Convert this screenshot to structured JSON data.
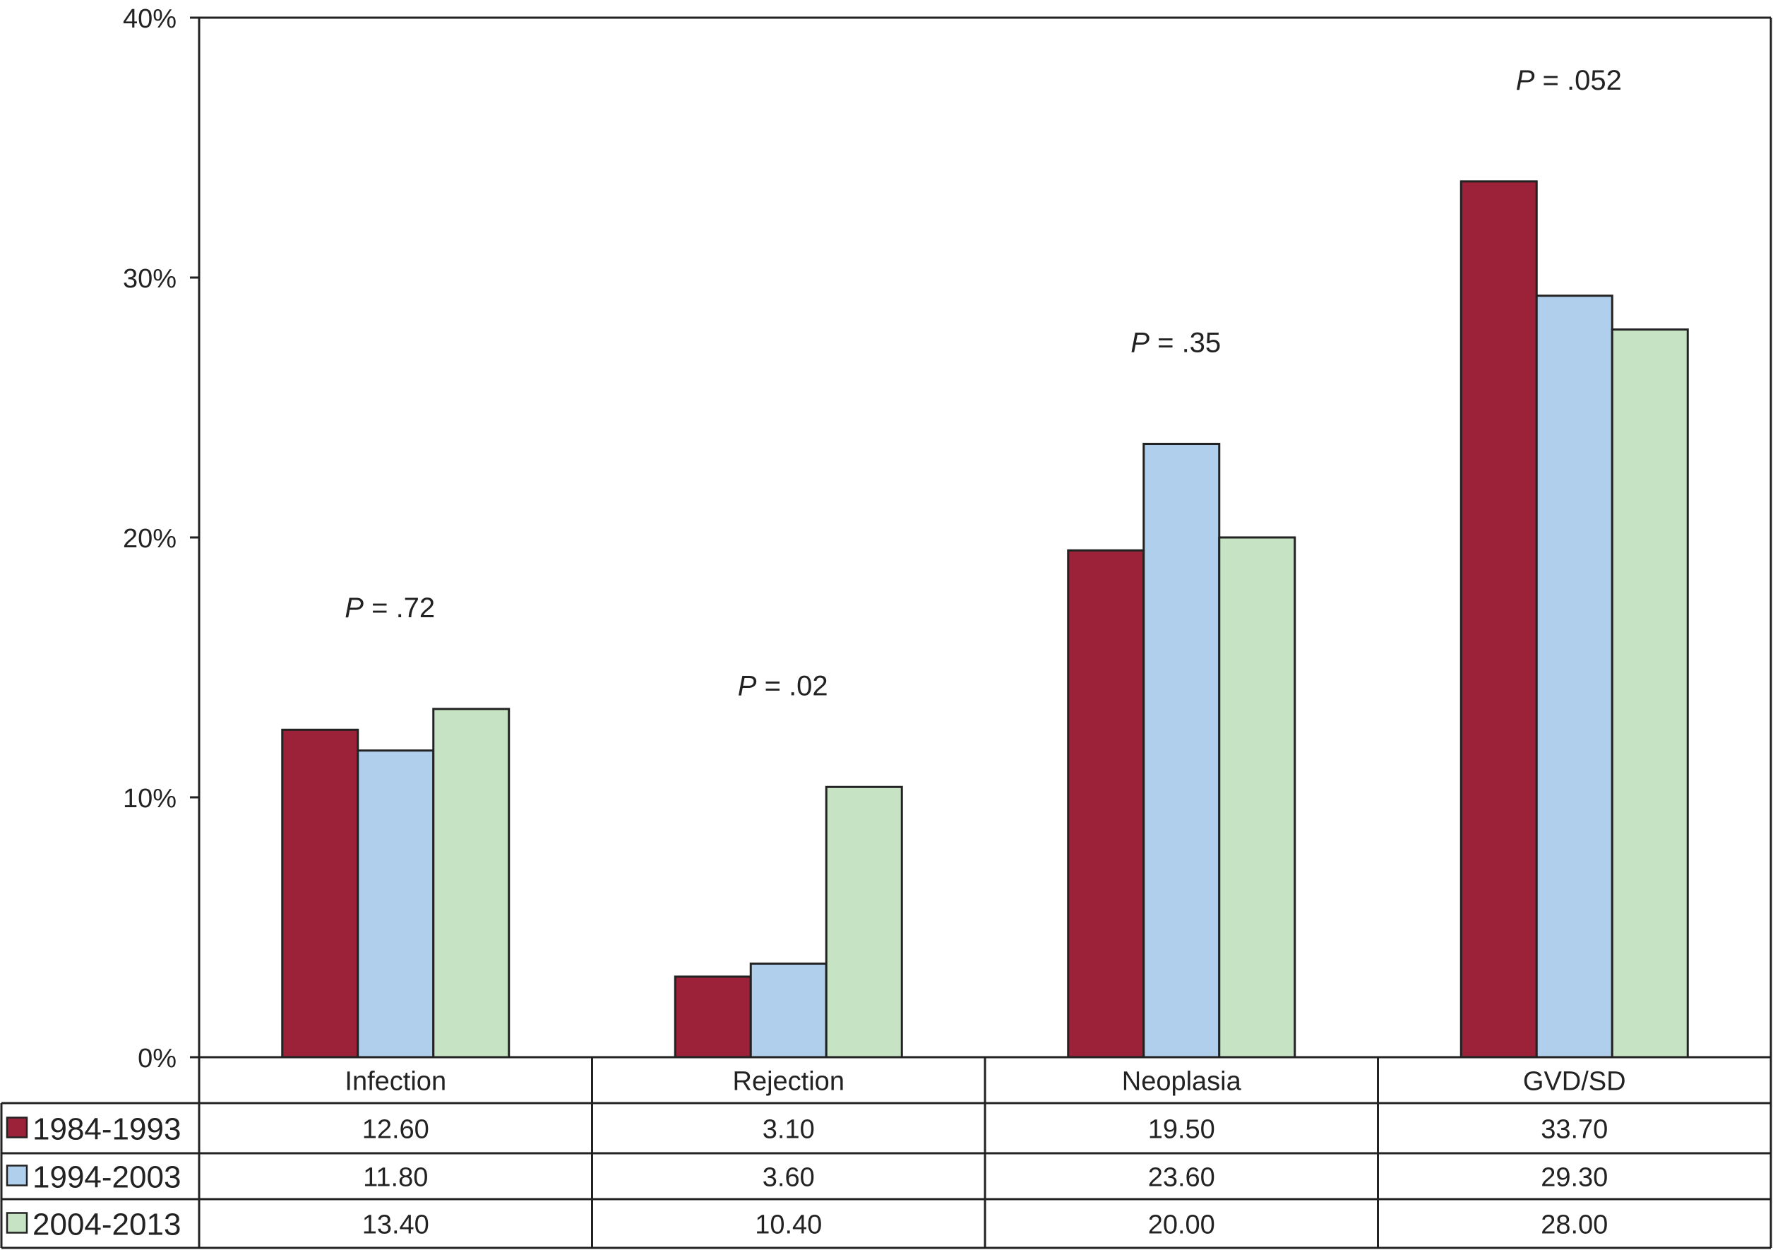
{
  "chart_data": {
    "type": "bar",
    "categories": [
      "Infection",
      "Rejection",
      "Neoplasia",
      "GVD/SD"
    ],
    "series": [
      {
        "name": "1984-1993",
        "color": "#9b2239",
        "values": [
          12.6,
          3.1,
          19.5,
          33.7
        ]
      },
      {
        "name": "1994-2003",
        "color": "#b0cfec",
        "values": [
          11.8,
          3.6,
          23.6,
          29.3
        ]
      },
      {
        "name": "2004-2013",
        "color": "#c6e4c4",
        "values": [
          13.4,
          10.4,
          20.0,
          28.0
        ]
      }
    ],
    "table_values": [
      [
        "12.60",
        "3.10",
        "19.50",
        "33.70"
      ],
      [
        "11.80",
        "3.60",
        "23.60",
        "29.30"
      ],
      [
        "13.40",
        "10.40",
        "20.00",
        "28.00"
      ]
    ],
    "annotations": [
      {
        "category": "Infection",
        "p_label": "P",
        "value_text": " = .72"
      },
      {
        "category": "Rejection",
        "p_label": "P",
        "value_text": " = .02"
      },
      {
        "category": "Neoplasia",
        "p_label": "P",
        "value_text": " = .35"
      },
      {
        "category": "GVD/SD",
        "p_label": "P",
        "value_text": " = .052"
      }
    ],
    "y_ticks": [
      {
        "value": 0,
        "label": "0%"
      },
      {
        "value": 10,
        "label": "10%"
      },
      {
        "value": 20,
        "label": "20%"
      },
      {
        "value": 30,
        "label": "30%"
      },
      {
        "value": 40,
        "label": "40%"
      }
    ],
    "ylim": [
      0,
      40
    ],
    "grid": false,
    "legend": "data-table-rows",
    "title": "",
    "xlabel": "",
    "ylabel": ""
  }
}
